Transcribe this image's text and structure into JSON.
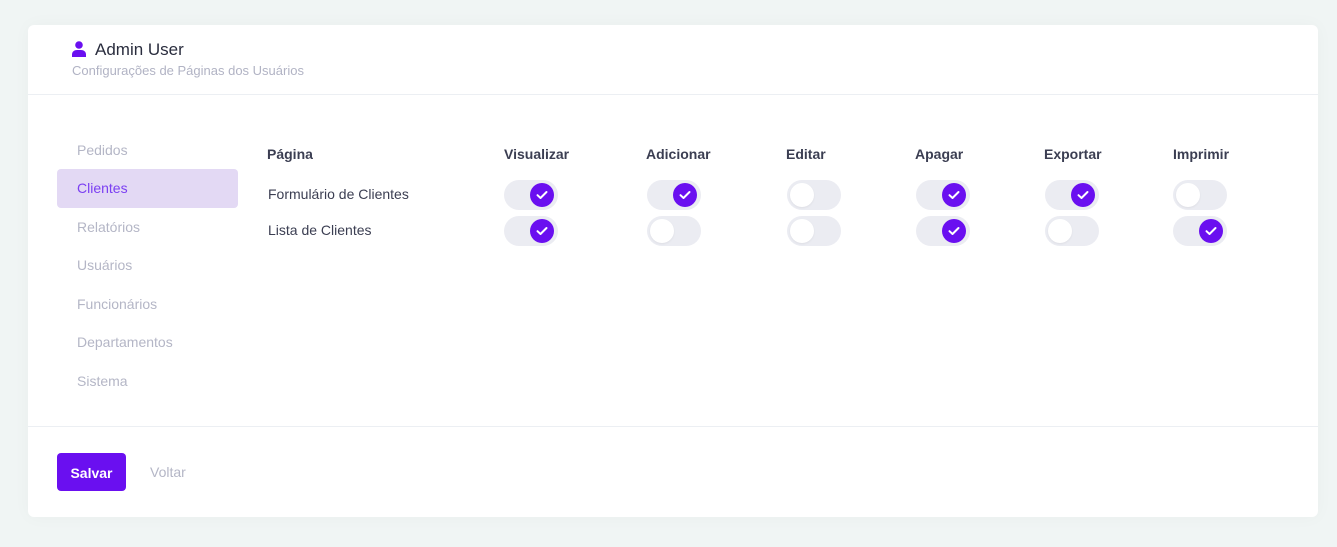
{
  "header": {
    "user_name": "Admin User",
    "subtitle": "Configurações de Páginas dos Usuários",
    "icon": "user-icon"
  },
  "sidebar": {
    "items": [
      {
        "label": "Pedidos",
        "active": false
      },
      {
        "label": "Clientes",
        "active": true
      },
      {
        "label": "Relatórios",
        "active": false
      },
      {
        "label": "Usuários",
        "active": false
      },
      {
        "label": "Funcionários",
        "active": false
      },
      {
        "label": "Departamentos",
        "active": false
      },
      {
        "label": "Sistema",
        "active": false
      }
    ]
  },
  "table": {
    "columns": [
      "Página",
      "Visualizar",
      "Adicionar",
      "Editar",
      "Apagar",
      "Exportar",
      "Imprimir"
    ],
    "rows": [
      {
        "page": "Formulário de Clientes",
        "permissions": [
          true,
          true,
          false,
          true,
          true,
          false
        ]
      },
      {
        "page": "Lista de Clientes",
        "permissions": [
          true,
          false,
          false,
          true,
          false,
          true
        ]
      }
    ]
  },
  "footer": {
    "save_label": "Salvar",
    "back_label": "Voltar"
  },
  "colors": {
    "accent": "#6a0ff0",
    "active_bg": "#e3d9f4",
    "active_text": "#7b3ff2",
    "toggle_off": "#ebecf2"
  }
}
